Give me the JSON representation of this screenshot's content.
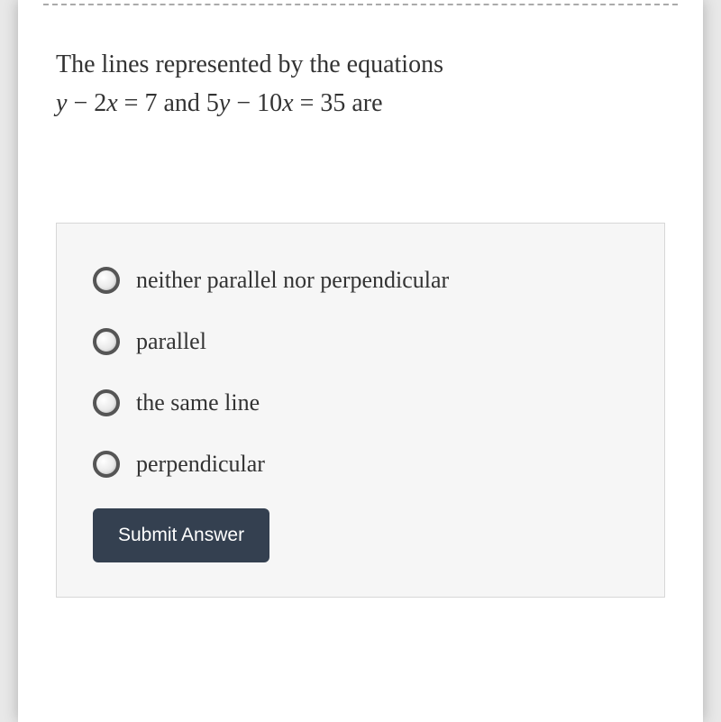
{
  "question": {
    "prefix": "The lines represented by the equations",
    "eq1_lhs_y": "y",
    "eq1_minus": " − ",
    "eq1_2x": "2x",
    "eq1_eq": " = ",
    "eq1_rhs": "7",
    "and_text": " and ",
    "eq2_5y": "5y",
    "eq2_minus": " − ",
    "eq2_10x": "10x",
    "eq2_eq": " = ",
    "eq2_rhs": "35",
    "suffix": " are"
  },
  "options": [
    {
      "label": "neither parallel nor perpendicular"
    },
    {
      "label": "parallel"
    },
    {
      "label": "the same line"
    },
    {
      "label": "perpendicular"
    }
  ],
  "submit_label": "Submit Answer",
  "styling": {
    "background_color": "#ffffff",
    "answer_box_bg": "#f6f6f6",
    "answer_box_border": "#d7d7d7",
    "text_color": "#333333",
    "radio_border_color": "#555555",
    "submit_bg": "#344050",
    "submit_text": "#ffffff",
    "question_fontsize": 28,
    "option_fontsize": 26,
    "submit_fontsize": 21
  }
}
